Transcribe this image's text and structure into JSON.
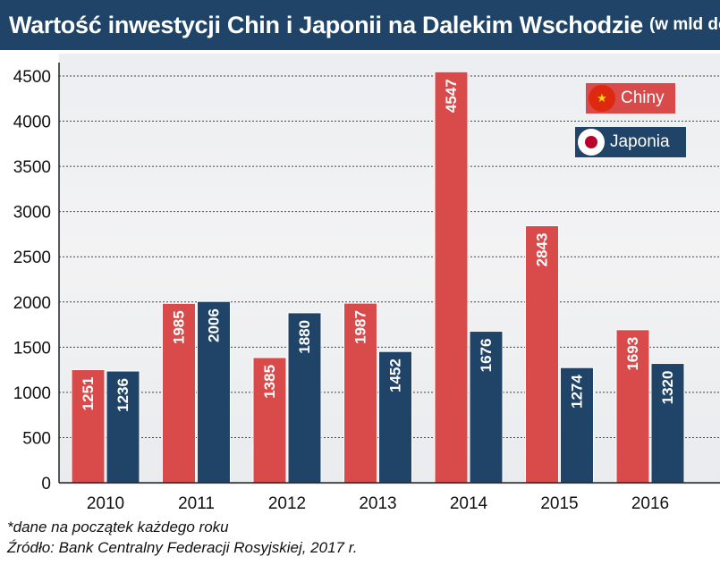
{
  "title": {
    "main": "Wartość inwestycji Chin i Japonii na Dalekim Wschodzie",
    "unit": "(w mld dol.)*"
  },
  "chart_data": {
    "type": "bar",
    "categories": [
      "2010",
      "2011",
      "2012",
      "2013",
      "2014",
      "2015",
      "2016"
    ],
    "series": [
      {
        "name": "Chiny",
        "color": "#d94a4a",
        "values": [
          1251,
          1985,
          1385,
          1987,
          4547,
          2843,
          1693
        ]
      },
      {
        "name": "Japonia",
        "color": "#1f4468",
        "values": [
          1236,
          2006,
          1880,
          1452,
          1676,
          1274,
          1320
        ]
      }
    ],
    "ylim": [
      0,
      4500
    ],
    "yticks": [
      0,
      500,
      1000,
      1500,
      2000,
      2500,
      3000,
      3500,
      4000,
      4500
    ],
    "grid": true,
    "legend_position": "top-right",
    "data_labels": "inside-bar-vertical"
  },
  "legend": {
    "chiny": {
      "label": "Chiny",
      "icon": "china-flag-icon"
    },
    "japonia": {
      "label": "Japonia",
      "icon": "japan-flag-icon"
    }
  },
  "footnotes": {
    "note": "*dane na początek każdego roku",
    "source": "Źródło: Bank Centralny Federacji Rosyjskiej, 2017 r."
  }
}
